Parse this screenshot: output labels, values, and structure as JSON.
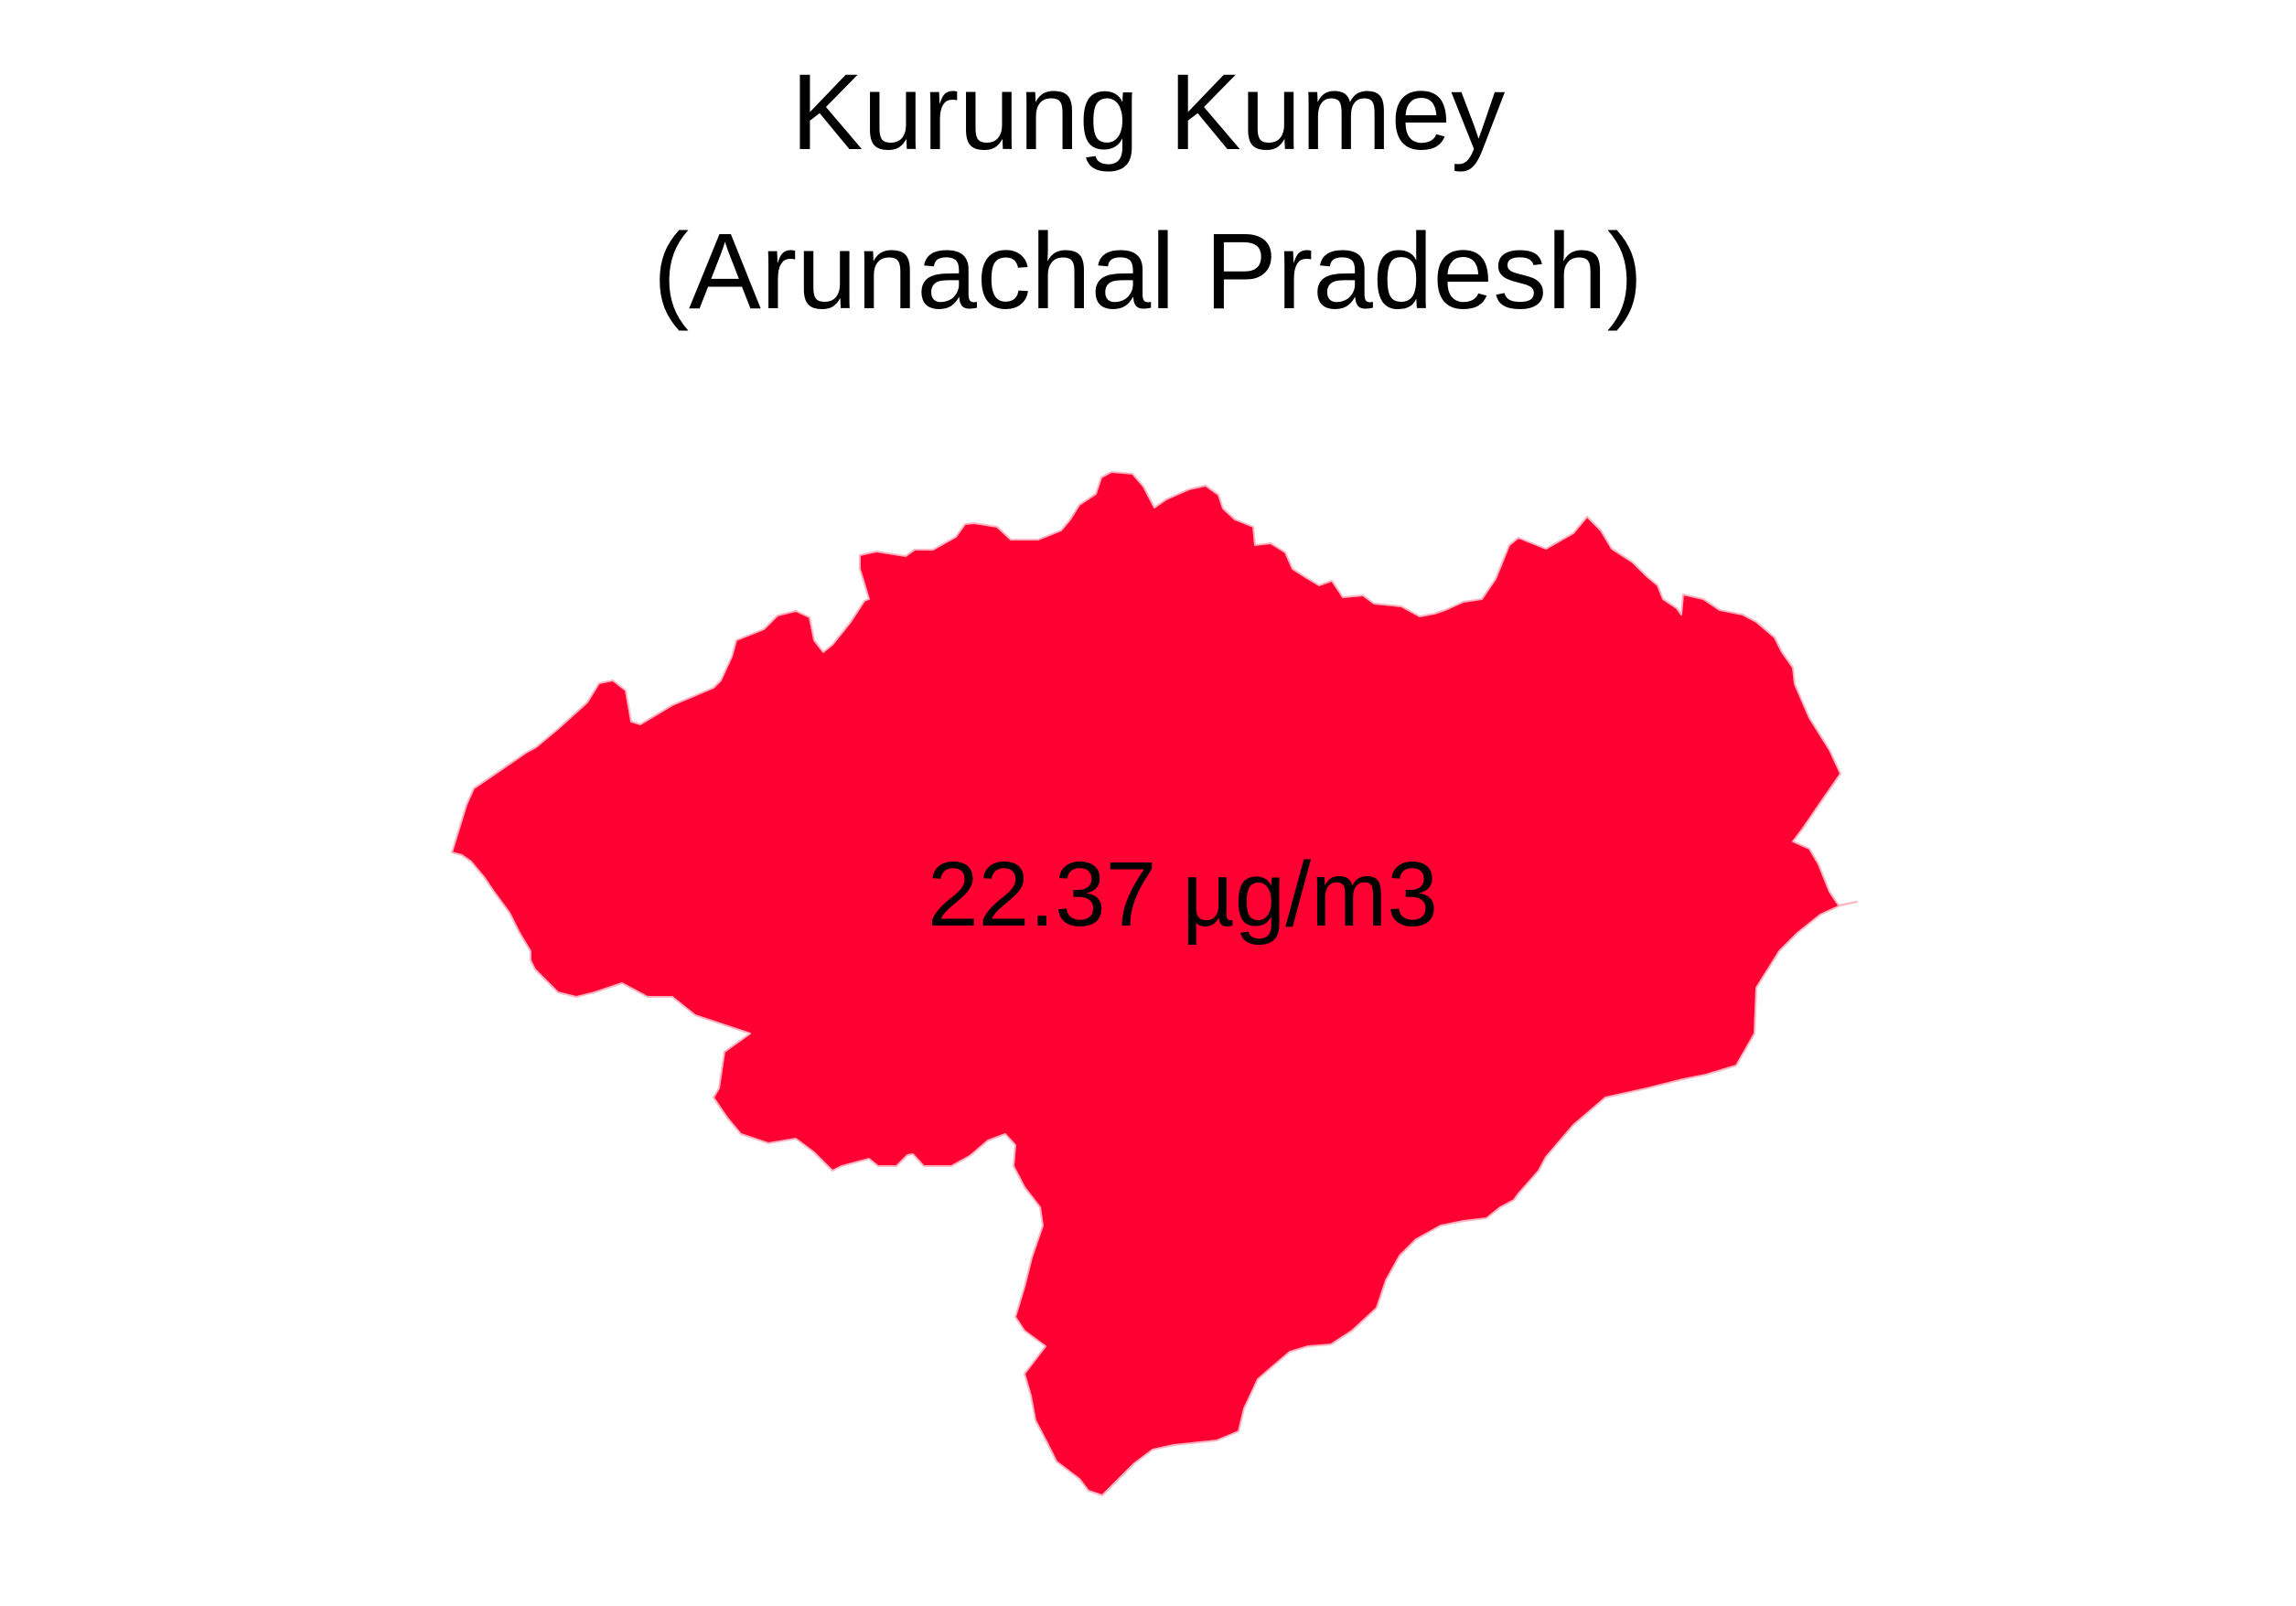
{
  "title": {
    "district": "Kurung Kumey",
    "state": "(Arunachal Pradesh)"
  },
  "region": {
    "name": "Kurung Kumey",
    "value_label": "22.37 µg/m3",
    "fill_color": "#FF0033",
    "border_color": "#FFB3C1"
  }
}
